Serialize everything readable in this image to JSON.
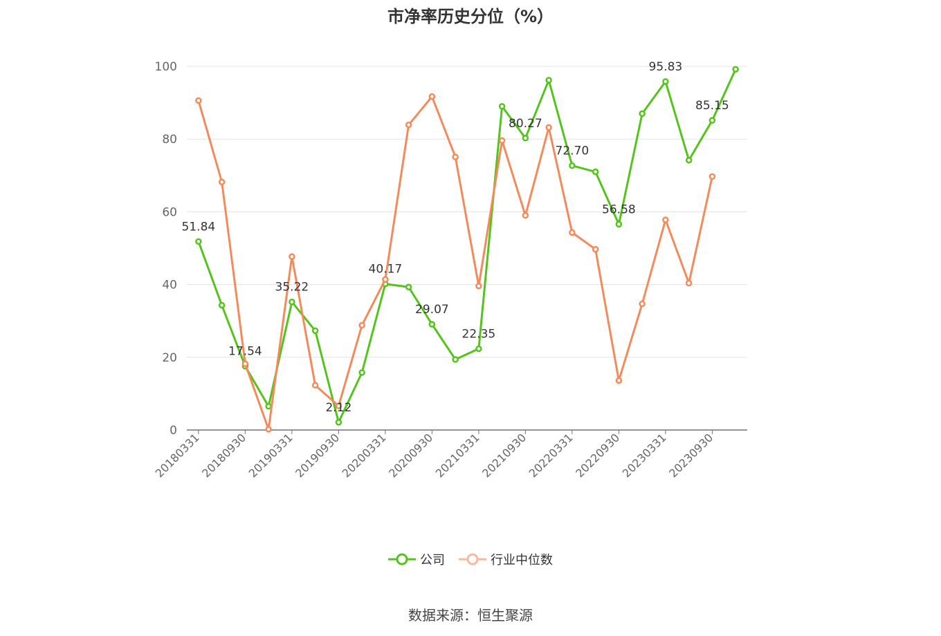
{
  "chart_data": {
    "type": "line",
    "title": "市净率历史分位（%）",
    "ylim": [
      0,
      100
    ],
    "yticks": [
      "0",
      "20",
      "40",
      "60",
      "80",
      "100"
    ],
    "x": [
      "20180331",
      "20180630",
      "20180930",
      "20181231",
      "20190331",
      "20190630",
      "20190930",
      "20191231",
      "20200331",
      "20200630",
      "20200930",
      "20201231",
      "20210331",
      "20210630",
      "20210930",
      "20211231",
      "20220331",
      "20220630",
      "20220930",
      "20221231",
      "20230331",
      "20230630",
      "20230930",
      "20231231"
    ],
    "xtick_labels": [
      "20180331",
      "20180930",
      "20190331",
      "20190930",
      "20200331",
      "20200930",
      "20210331",
      "20210930",
      "20220331",
      "20220930",
      "20230331",
      "20230930"
    ],
    "grid": true,
    "legend_position": "bottom",
    "series": [
      {
        "name": "公司",
        "color": "#52c41a",
        "values": [
          51.84,
          34.3,
          17.54,
          6.5,
          35.22,
          27.3,
          2.12,
          15.8,
          40.17,
          39.3,
          29.07,
          19.4,
          22.35,
          89.0,
          80.27,
          96.2,
          72.7,
          71.0,
          56.58,
          87.0,
          95.83,
          74.2,
          85.15,
          99.2
        ],
        "labels": [
          "51.84",
          "",
          "17.54",
          "",
          "35.22",
          "",
          "2.12",
          "",
          "40.17",
          "",
          "29.07",
          "",
          "22.35",
          "",
          "80.27",
          "",
          "72.70",
          "",
          "56.58",
          "",
          "95.83",
          "",
          "85.15",
          ""
        ]
      },
      {
        "name": "行业中位数",
        "color": "#f4895a",
        "values": [
          90.6,
          68.2,
          18.2,
          0.2,
          47.7,
          12.3,
          6.6,
          28.8,
          41.4,
          83.9,
          91.7,
          75.1,
          39.6,
          79.6,
          59.0,
          83.2,
          54.3,
          49.7,
          13.6,
          34.7,
          57.8,
          40.4,
          69.7,
          null
        ]
      }
    ]
  },
  "legend": {
    "company": "公司",
    "industry": "行业中位数"
  },
  "source": "数据来源：恒生聚源"
}
